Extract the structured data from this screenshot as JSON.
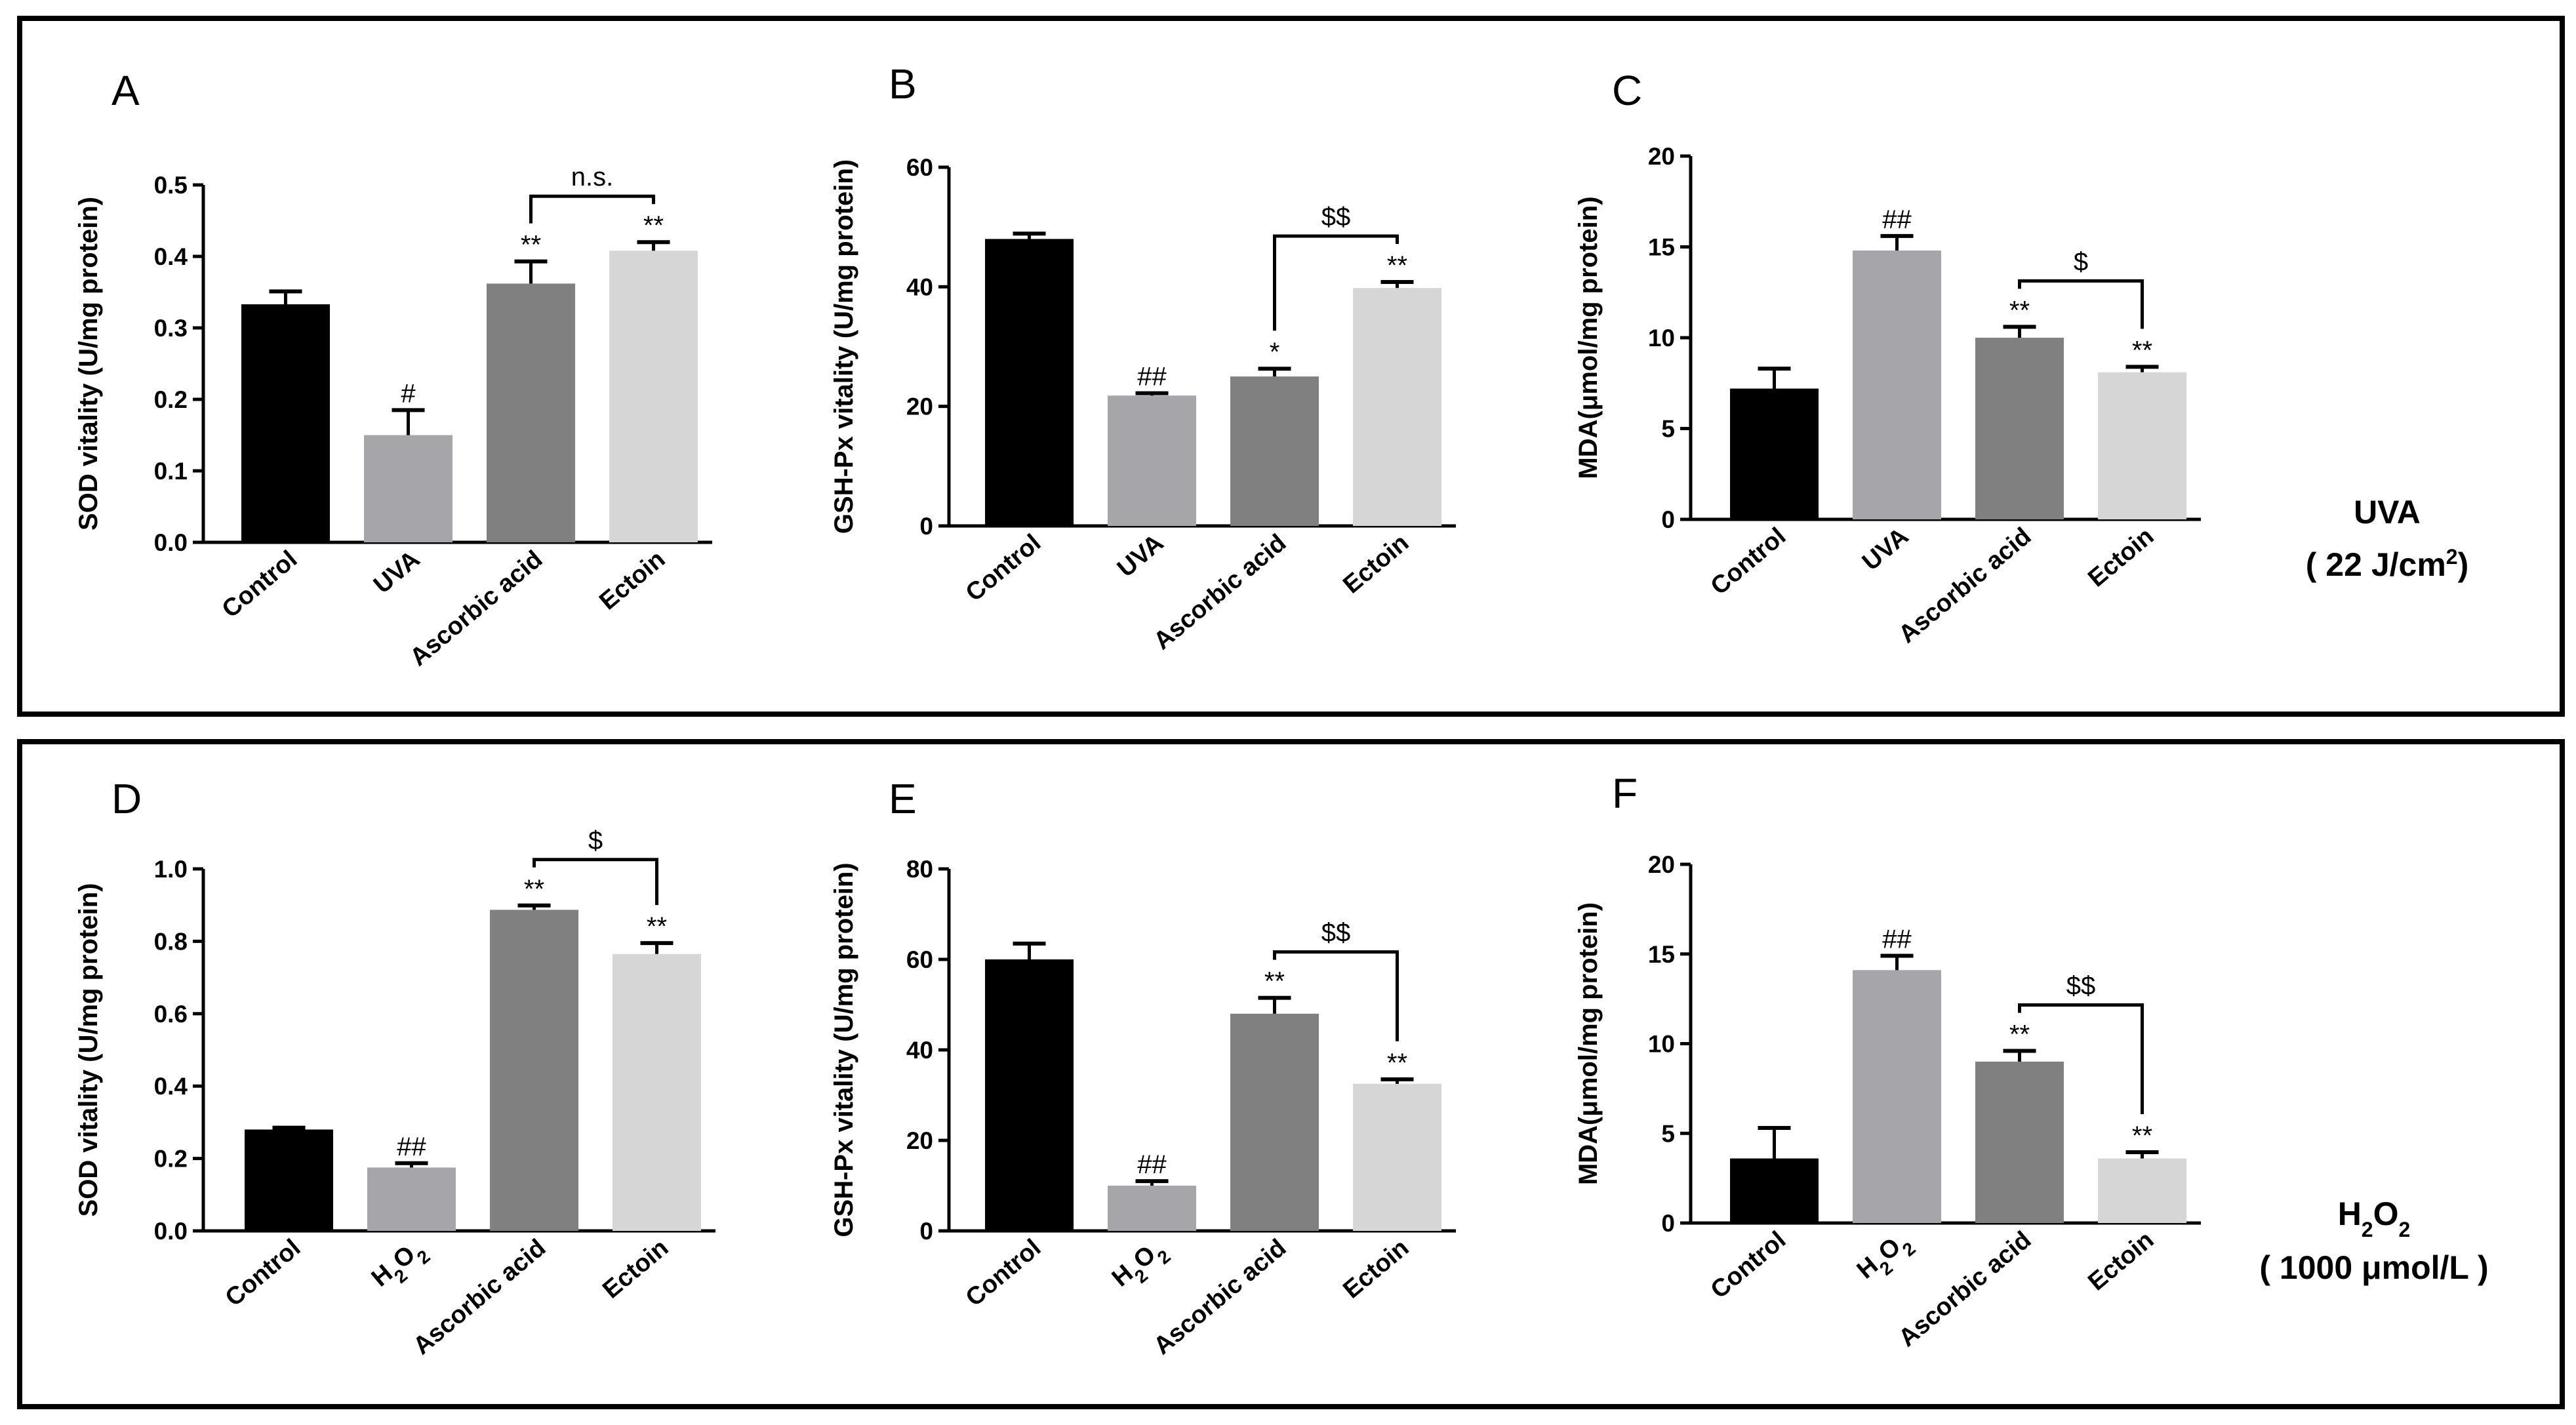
{
  "colors": {
    "bar": [
      "#000000",
      "#a6a6aa",
      "#808080",
      "#d6d6d6"
    ],
    "frame": "#000000"
  },
  "conditions": {
    "uva": {
      "line1": "UVA",
      "line2_pre": "( 22 J/cm",
      "line2_sup": "2",
      "line2_post": ")"
    },
    "h2o2": {
      "main": "H",
      "sub1": "2",
      "mid": "O",
      "sub2": "2",
      "line2": "( 1000 μmol/L )"
    }
  },
  "chart_data": [
    {
      "panel": "A",
      "type": "bar",
      "ylabel": "SOD vitality (U/mg protein)",
      "ylim": [
        0,
        0.5
      ],
      "ticks": [
        "0.0",
        "0.1",
        "0.2",
        "0.3",
        "0.4",
        "0.5"
      ],
      "categories": [
        "Control",
        "UVA",
        "Ascorbic acid",
        "Ectoin"
      ],
      "values": [
        0.333,
        0.15,
        0.362,
        0.408
      ],
      "errors": [
        0.018,
        0.035,
        0.031,
        0.012
      ],
      "marks": [
        "",
        "#",
        "**",
        "**"
      ],
      "bracket": {
        "from": 2,
        "to": 3,
        "label": "n.s."
      }
    },
    {
      "panel": "B",
      "type": "bar",
      "ylabel": "GSH-Px vitality (U/mg protein)",
      "ylim": [
        0,
        60
      ],
      "ticks": [
        "0",
        "20",
        "40",
        "60"
      ],
      "categories": [
        "Control",
        "UVA",
        "Ascorbic acid",
        "Ectoin"
      ],
      "values": [
        48,
        21.8,
        25,
        39.8
      ],
      "errors": [
        0.9,
        0.4,
        1.3,
        1.0
      ],
      "marks": [
        "",
        "##",
        "*",
        "**"
      ],
      "bracket": {
        "from": 2,
        "to": 3,
        "label": "$$"
      }
    },
    {
      "panel": "C",
      "type": "bar",
      "ylabel": "MDA(μmol/mg protein)",
      "ylim": [
        0,
        20
      ],
      "ticks": [
        "0",
        "5",
        "10",
        "15",
        "20"
      ],
      "categories": [
        "Control",
        "UVA",
        "Ascorbic acid",
        "Ectoin"
      ],
      "values": [
        7.2,
        14.8,
        10,
        8.1
      ],
      "errors": [
        1.1,
        0.8,
        0.6,
        0.3
      ],
      "marks": [
        "",
        "##",
        "**",
        "**"
      ],
      "bracket": {
        "from": 2,
        "to": 3,
        "label": "$"
      }
    },
    {
      "panel": "D",
      "type": "bar",
      "ylabel": "SOD vitality (U/mg protein)",
      "ylim": [
        0,
        1.0
      ],
      "ticks": [
        "0.0",
        "0.2",
        "0.4",
        "0.6",
        "0.8",
        "1.0"
      ],
      "categories": [
        "Control",
        "H2O2",
        "Ascorbic acid",
        "Ectoin"
      ],
      "values": [
        0.28,
        0.175,
        0.887,
        0.765
      ],
      "errors": [
        0.005,
        0.012,
        0.012,
        0.03
      ],
      "marks": [
        "",
        "##",
        "**",
        "**"
      ],
      "bracket": {
        "from": 2,
        "to": 3,
        "label": "$"
      }
    },
    {
      "panel": "E",
      "type": "bar",
      "ylabel": "GSH-Px vitality (U/mg protein)",
      "ylim": [
        0,
        80
      ],
      "ticks": [
        "0",
        "20",
        "40",
        "60",
        "80"
      ],
      "categories": [
        "Control",
        "H2O2",
        "Ascorbic acid",
        "Ectoin"
      ],
      "values": [
        60,
        10,
        48,
        32.5
      ],
      "errors": [
        3.5,
        1.0,
        3.5,
        1.0
      ],
      "marks": [
        "",
        "##",
        "**",
        "**"
      ],
      "bracket": {
        "from": 2,
        "to": 3,
        "label": "$$"
      }
    },
    {
      "panel": "F",
      "type": "bar",
      "ylabel": "MDA(μmol/mg protein)",
      "ylim": [
        0,
        20
      ],
      "ticks": [
        "0",
        "5",
        "10",
        "15",
        "20"
      ],
      "categories": [
        "Control",
        "H2O2",
        "Ascorbic acid",
        "Ectoin"
      ],
      "values": [
        3.6,
        14.1,
        9,
        3.6
      ],
      "errors": [
        1.7,
        0.8,
        0.6,
        0.35
      ],
      "marks": [
        "",
        "##",
        "**",
        "**"
      ],
      "bracket": {
        "from": 2,
        "to": 3,
        "label": "$$"
      }
    }
  ]
}
